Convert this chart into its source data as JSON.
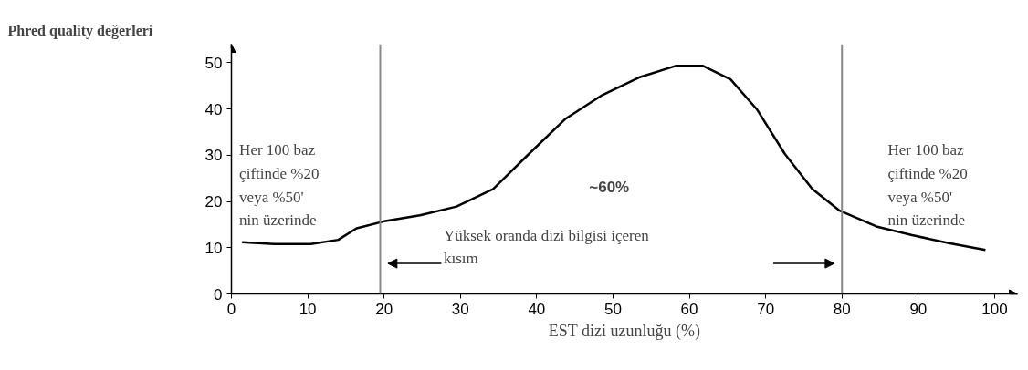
{
  "chart_data": {
    "type": "line",
    "ylabel": "Phred quality değerleri",
    "xlabel": "EST dizi uzunluğu (%)",
    "x": [
      1.4,
      5.6,
      10.4,
      14,
      16.4,
      20,
      24.7,
      29.5,
      34.3,
      39,
      43.8,
      48.6,
      53.4,
      58.2,
      61.8,
      65.4,
      68.9,
      72.5,
      76.1,
      79.7,
      84.5,
      89.2,
      94,
      98.8
    ],
    "series": [
      {
        "color": "#000000",
        "values": [
          11.2,
          10.8,
          10.8,
          11.7,
          14.2,
          15.7,
          17,
          18.9,
          22.7,
          30.3,
          37.9,
          43,
          46.8,
          49.3,
          49.3,
          46.4,
          39.8,
          30.3,
          22.7,
          18,
          14.6,
          12.7,
          11,
          9.5
        ]
      }
    ],
    "xlim": [
      0,
      103
    ],
    "ylim": [
      0,
      54
    ],
    "xticks": [
      0,
      10,
      20,
      30,
      40,
      50,
      60,
      70,
      80,
      90,
      100
    ],
    "yticks": [
      0,
      10,
      20,
      30,
      40,
      50
    ],
    "grid": false,
    "marker": "none",
    "line_style": "solid",
    "ref_lines": [
      {
        "axis": "x",
        "value": 19.5,
        "color": "#888888"
      },
      {
        "axis": "x",
        "value": 80,
        "color": "#888888"
      }
    ],
    "annotations": [
      "Her 100 baz\nçiftinde %20\nveya %50'\nnin üzerinde",
      "Her 100 baz\nçiftinde %20\nveya %50'\nnin üzerinde",
      "~60%",
      "Yüksek oranda dizi bilgisi içeren\nkısım"
    ]
  }
}
